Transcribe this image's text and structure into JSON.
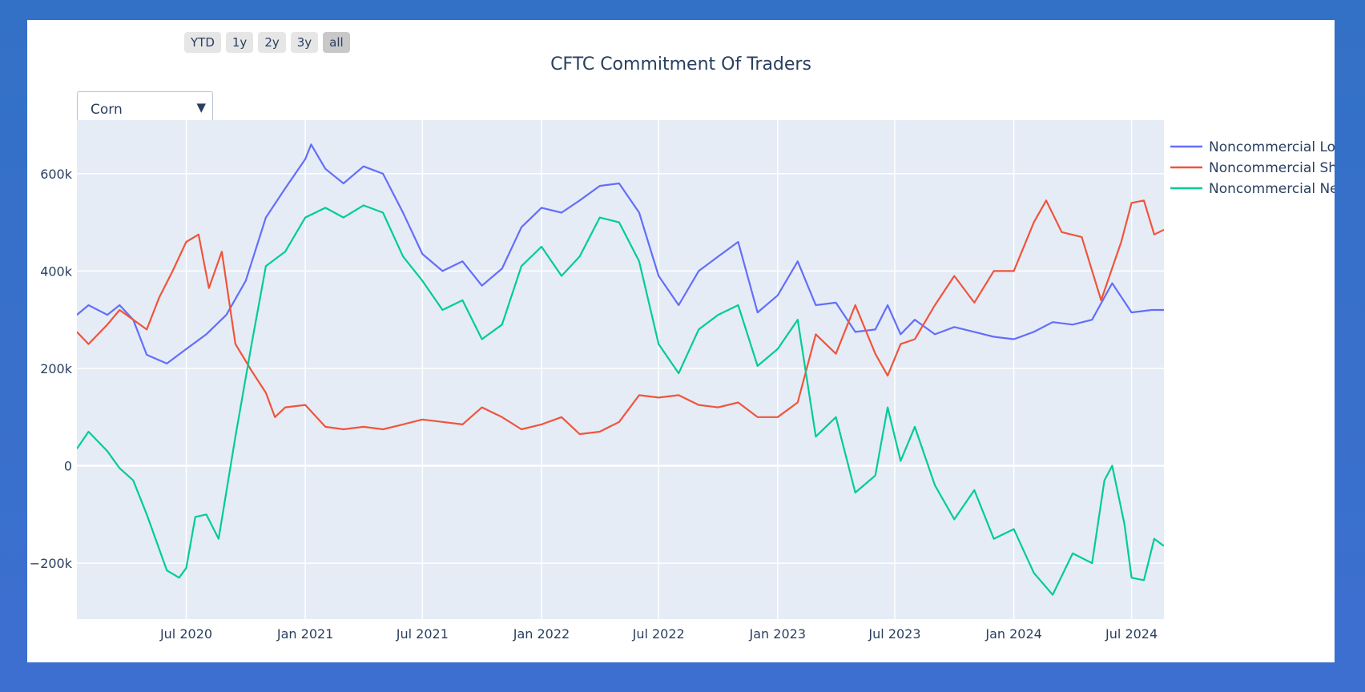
{
  "range_selector": {
    "buttons": [
      "YTD",
      "1y",
      "2y",
      "3y",
      "all"
    ],
    "active": "all"
  },
  "dropdown": {
    "selected": "Corn"
  },
  "chart_data": {
    "type": "line",
    "title": "CFTC Commitment Of Traders",
    "xlabel": "",
    "ylabel": "",
    "x_range": [
      "2020-01-14",
      "2024-08-20"
    ],
    "ylim": [
      -315000,
      710000
    ],
    "y_ticks": [
      -200000,
      0,
      200000,
      400000,
      600000
    ],
    "y_tick_labels": [
      "−200k",
      "0",
      "200k",
      "400k",
      "600k"
    ],
    "x_ticks": [
      "2020-07-01",
      "2021-01-01",
      "2021-07-01",
      "2022-01-01",
      "2022-07-01",
      "2023-01-01",
      "2023-07-01",
      "2024-01-01",
      "2024-07-01"
    ],
    "x_tick_labels": [
      "Jul 2020",
      "Jan 2021",
      "Jul 2021",
      "Jan 2022",
      "Jul 2022",
      "Jan 2023",
      "Jul 2023",
      "Jan 2024",
      "Jul 2024"
    ],
    "legend_position": "top-right",
    "series": [
      {
        "name": "Noncommercial Long",
        "color": "#636efa",
        "points": [
          [
            "2020-01-14",
            310000
          ],
          [
            "2020-02-01",
            330000
          ],
          [
            "2020-03-01",
            310000
          ],
          [
            "2020-03-20",
            330000
          ],
          [
            "2020-04-10",
            300000
          ],
          [
            "2020-05-01",
            228000
          ],
          [
            "2020-06-01",
            210000
          ],
          [
            "2020-07-01",
            240000
          ],
          [
            "2020-08-01",
            270000
          ],
          [
            "2020-09-01",
            310000
          ],
          [
            "2020-10-01",
            380000
          ],
          [
            "2020-11-01",
            510000
          ],
          [
            "2020-12-01",
            570000
          ],
          [
            "2021-01-01",
            630000
          ],
          [
            "2021-01-10",
            660000
          ],
          [
            "2021-02-01",
            610000
          ],
          [
            "2021-03-01",
            580000
          ],
          [
            "2021-04-01",
            615000
          ],
          [
            "2021-05-01",
            600000
          ],
          [
            "2021-06-01",
            520000
          ],
          [
            "2021-07-01",
            435000
          ],
          [
            "2021-08-01",
            400000
          ],
          [
            "2021-09-01",
            420000
          ],
          [
            "2021-10-01",
            370000
          ],
          [
            "2021-11-01",
            405000
          ],
          [
            "2021-12-01",
            490000
          ],
          [
            "2022-01-01",
            530000
          ],
          [
            "2022-02-01",
            520000
          ],
          [
            "2022-03-01",
            545000
          ],
          [
            "2022-04-01",
            575000
          ],
          [
            "2022-05-01",
            580000
          ],
          [
            "2022-06-01",
            520000
          ],
          [
            "2022-07-01",
            390000
          ],
          [
            "2022-08-01",
            330000
          ],
          [
            "2022-09-01",
            400000
          ],
          [
            "2022-10-01",
            430000
          ],
          [
            "2022-11-01",
            460000
          ],
          [
            "2022-12-01",
            315000
          ],
          [
            "2023-01-01",
            350000
          ],
          [
            "2023-02-01",
            420000
          ],
          [
            "2023-03-01",
            330000
          ],
          [
            "2023-04-01",
            335000
          ],
          [
            "2023-05-01",
            275000
          ],
          [
            "2023-06-01",
            280000
          ],
          [
            "2023-06-20",
            330000
          ],
          [
            "2023-07-10",
            270000
          ],
          [
            "2023-08-01",
            300000
          ],
          [
            "2023-09-01",
            270000
          ],
          [
            "2023-10-01",
            285000
          ],
          [
            "2023-11-01",
            275000
          ],
          [
            "2023-12-01",
            265000
          ],
          [
            "2024-01-01",
            260000
          ],
          [
            "2024-02-01",
            275000
          ],
          [
            "2024-03-01",
            295000
          ],
          [
            "2024-04-01",
            290000
          ],
          [
            "2024-05-01",
            300000
          ],
          [
            "2024-06-01",
            375000
          ],
          [
            "2024-07-01",
            315000
          ],
          [
            "2024-08-01",
            320000
          ],
          [
            "2024-08-20",
            320000
          ]
        ]
      },
      {
        "name": "Noncommercial Short",
        "color": "#ef553b",
        "points": [
          [
            "2020-01-14",
            275000
          ],
          [
            "2020-02-01",
            250000
          ],
          [
            "2020-03-01",
            290000
          ],
          [
            "2020-03-20",
            320000
          ],
          [
            "2020-04-10",
            300000
          ],
          [
            "2020-05-01",
            280000
          ],
          [
            "2020-05-20",
            345000
          ],
          [
            "2020-06-10",
            400000
          ],
          [
            "2020-07-01",
            460000
          ],
          [
            "2020-07-20",
            475000
          ],
          [
            "2020-08-05",
            365000
          ],
          [
            "2020-08-25",
            440000
          ],
          [
            "2020-09-15",
            250000
          ],
          [
            "2020-10-10",
            195000
          ],
          [
            "2020-11-01",
            150000
          ],
          [
            "2020-11-15",
            100000
          ],
          [
            "2020-12-01",
            120000
          ],
          [
            "2021-01-01",
            125000
          ],
          [
            "2021-02-01",
            80000
          ],
          [
            "2021-03-01",
            75000
          ],
          [
            "2021-04-01",
            80000
          ],
          [
            "2021-05-01",
            75000
          ],
          [
            "2021-06-01",
            85000
          ],
          [
            "2021-07-01",
            95000
          ],
          [
            "2021-08-01",
            90000
          ],
          [
            "2021-09-01",
            85000
          ],
          [
            "2021-10-01",
            120000
          ],
          [
            "2021-11-01",
            100000
          ],
          [
            "2021-12-01",
            75000
          ],
          [
            "2022-01-01",
            85000
          ],
          [
            "2022-02-01",
            100000
          ],
          [
            "2022-03-01",
            65000
          ],
          [
            "2022-04-01",
            70000
          ],
          [
            "2022-05-01",
            90000
          ],
          [
            "2022-06-01",
            145000
          ],
          [
            "2022-07-01",
            140000
          ],
          [
            "2022-08-01",
            145000
          ],
          [
            "2022-09-01",
            125000
          ],
          [
            "2022-10-01",
            120000
          ],
          [
            "2022-11-01",
            130000
          ],
          [
            "2022-12-01",
            100000
          ],
          [
            "2023-01-01",
            100000
          ],
          [
            "2023-02-01",
            130000
          ],
          [
            "2023-03-01",
            270000
          ],
          [
            "2023-04-01",
            230000
          ],
          [
            "2023-05-01",
            330000
          ],
          [
            "2023-06-01",
            230000
          ],
          [
            "2023-06-20",
            185000
          ],
          [
            "2023-07-10",
            250000
          ],
          [
            "2023-08-01",
            260000
          ],
          [
            "2023-09-01",
            330000
          ],
          [
            "2023-10-01",
            390000
          ],
          [
            "2023-11-01",
            335000
          ],
          [
            "2023-12-01",
            400000
          ],
          [
            "2024-01-01",
            400000
          ],
          [
            "2024-02-01",
            500000
          ],
          [
            "2024-02-20",
            545000
          ],
          [
            "2024-03-15",
            480000
          ],
          [
            "2024-04-15",
            470000
          ],
          [
            "2024-05-15",
            340000
          ],
          [
            "2024-06-15",
            460000
          ],
          [
            "2024-07-01",
            540000
          ],
          [
            "2024-07-20",
            545000
          ],
          [
            "2024-08-05",
            475000
          ],
          [
            "2024-08-20",
            485000
          ]
        ]
      },
      {
        "name": "Noncommercial Net",
        "color": "#00cc96",
        "points": [
          [
            "2020-01-14",
            35000
          ],
          [
            "2020-02-01",
            70000
          ],
          [
            "2020-03-01",
            30000
          ],
          [
            "2020-03-20",
            -5000
          ],
          [
            "2020-04-10",
            -30000
          ],
          [
            "2020-05-01",
            -100000
          ],
          [
            "2020-06-01",
            -215000
          ],
          [
            "2020-06-20",
            -230000
          ],
          [
            "2020-07-01",
            -210000
          ],
          [
            "2020-07-15",
            -105000
          ],
          [
            "2020-08-01",
            -100000
          ],
          [
            "2020-08-20",
            -150000
          ],
          [
            "2020-09-15",
            60000
          ],
          [
            "2020-10-10",
            250000
          ],
          [
            "2020-11-01",
            410000
          ],
          [
            "2020-12-01",
            440000
          ],
          [
            "2021-01-01",
            510000
          ],
          [
            "2021-02-01",
            530000
          ],
          [
            "2021-03-01",
            510000
          ],
          [
            "2021-04-01",
            535000
          ],
          [
            "2021-05-01",
            520000
          ],
          [
            "2021-06-01",
            430000
          ],
          [
            "2021-07-01",
            380000
          ],
          [
            "2021-08-01",
            320000
          ],
          [
            "2021-09-01",
            340000
          ],
          [
            "2021-10-01",
            260000
          ],
          [
            "2021-11-01",
            290000
          ],
          [
            "2021-12-01",
            410000
          ],
          [
            "2022-01-01",
            450000
          ],
          [
            "2022-02-01",
            390000
          ],
          [
            "2022-03-01",
            430000
          ],
          [
            "2022-04-01",
            510000
          ],
          [
            "2022-05-01",
            500000
          ],
          [
            "2022-06-01",
            420000
          ],
          [
            "2022-07-01",
            250000
          ],
          [
            "2022-08-01",
            190000
          ],
          [
            "2022-09-01",
            280000
          ],
          [
            "2022-10-01",
            310000
          ],
          [
            "2022-11-01",
            330000
          ],
          [
            "2022-12-01",
            205000
          ],
          [
            "2023-01-01",
            240000
          ],
          [
            "2023-02-01",
            300000
          ],
          [
            "2023-03-01",
            60000
          ],
          [
            "2023-04-01",
            100000
          ],
          [
            "2023-05-01",
            -55000
          ],
          [
            "2023-06-01",
            -20000
          ],
          [
            "2023-06-20",
            120000
          ],
          [
            "2023-07-10",
            10000
          ],
          [
            "2023-08-01",
            80000
          ],
          [
            "2023-09-01",
            -40000
          ],
          [
            "2023-10-01",
            -110000
          ],
          [
            "2023-11-01",
            -50000
          ],
          [
            "2023-12-01",
            -150000
          ],
          [
            "2024-01-01",
            -130000
          ],
          [
            "2024-02-01",
            -220000
          ],
          [
            "2024-03-01",
            -265000
          ],
          [
            "2024-04-01",
            -180000
          ],
          [
            "2024-05-01",
            -200000
          ],
          [
            "2024-05-20",
            -30000
          ],
          [
            "2024-06-01",
            0
          ],
          [
            "2024-06-20",
            -120000
          ],
          [
            "2024-07-01",
            -230000
          ],
          [
            "2024-07-20",
            -235000
          ],
          [
            "2024-08-05",
            -150000
          ],
          [
            "2024-08-20",
            -165000
          ]
        ]
      }
    ]
  }
}
